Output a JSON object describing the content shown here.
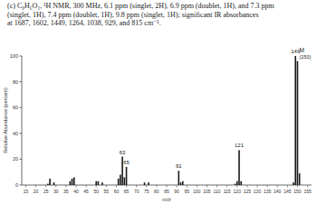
{
  "chart_data": {
    "type": "bar",
    "title": [
      "(c) C₈H₆O₃, ¹H NMR, 300 MHz, 6.1 ppm (singlet, 2H), 6.9 ppm (doublet, 1H), and 7.3 ppm",
      "(singlet, 1H), 7.4 ppm (doublet, 1H), 9.8 ppm (singlet, 1H); significant IR absorbances",
      "at 1687, 1602, 1449, 1264, 1038, 929, and 815 cm⁻¹."
    ],
    "x_label": "m/z",
    "y_label": "Relative Abundance (percent)",
    "x": [
      26,
      27,
      29,
      37,
      38,
      39,
      50,
      51,
      53,
      61,
      62,
      63,
      64,
      65,
      74,
      76,
      91,
      92,
      93,
      119,
      120,
      121,
      122,
      148,
      149,
      150,
      151
    ],
    "values": [
      1,
      5,
      2,
      3,
      5,
      6,
      3,
      3,
      2,
      5,
      8,
      22,
      6,
      14,
      2,
      2,
      11,
      2,
      3,
      1,
      3,
      27,
      3,
      2,
      100,
      96,
      9
    ],
    "color": "#1a1a1a",
    "xlim": [
      13,
      157
    ],
    "xticks": [
      15,
      20,
      25,
      30,
      35,
      40,
      45,
      50,
      55,
      60,
      65,
      70,
      75,
      80,
      85,
      90,
      95,
      100,
      105,
      110,
      115,
      120,
      125,
      130,
      135,
      140,
      145,
      150,
      155
    ],
    "ylim": [
      0,
      100
    ],
    "yticks": [
      0,
      20,
      40,
      60,
      80,
      100
    ],
    "grid": false,
    "annotations": [
      {
        "text": "63",
        "x": 63
      },
      {
        "text": "65",
        "x": 65
      },
      {
        "text": "91",
        "x": 91
      },
      {
        "text": "121",
        "x": 121
      },
      {
        "text": "149",
        "x": 149
      },
      {
        "text": "M",
        "x": 150
      },
      {
        "text": "(150)",
        "x": 150
      }
    ]
  }
}
